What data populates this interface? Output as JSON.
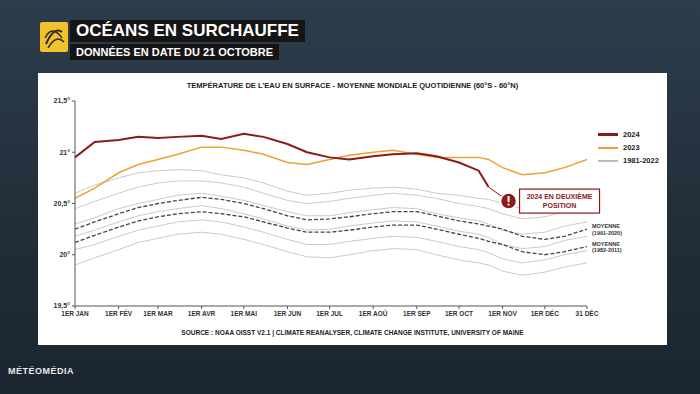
{
  "header": {
    "title": "OCÉANS EN SURCHAUFFE",
    "subtitle": "DONNÉES EN DATE DU 21 OCTOBRE"
  },
  "footer": "MÉTÉOMÉDIA",
  "chart_data": {
    "type": "line",
    "title": "TEMPÉRATURE DE L'EAU EN SURFACE - MOYENNE MONDIALE QUOTIDIENNE (60°S - 60°N)",
    "source": "SOURCE : NOAA OISST V2.1 | CLIMATE REANALYSER, CLIMATE CHANGE INSTITUTE, UNIVERSITY OF MAINE",
    "annotation": "2024 EN DEUXIÈME POSITION",
    "grid": false,
    "legend": "right",
    "x": [
      1,
      15,
      32,
      46,
      60,
      74,
      91,
      105,
      121,
      135,
      152,
      166,
      182,
      196,
      213,
      227,
      244,
      258,
      274,
      288,
      295,
      305,
      319,
      335,
      349,
      365
    ],
    "xlim": [
      1,
      365
    ],
    "xticks": [
      {
        "value": 1,
        "label": "1ER JAN"
      },
      {
        "value": 32,
        "label": "1ER FÉV"
      },
      {
        "value": 60,
        "label": "1ER MAR"
      },
      {
        "value": 91,
        "label": "1ER AVR"
      },
      {
        "value": 121,
        "label": "1ER MAI"
      },
      {
        "value": 152,
        "label": "1ER JUN"
      },
      {
        "value": 182,
        "label": "1ER JUL"
      },
      {
        "value": 213,
        "label": "1ER AOÛ"
      },
      {
        "value": 244,
        "label": "1ER SEP"
      },
      {
        "value": 274,
        "label": "1ER OCT"
      },
      {
        "value": 305,
        "label": "1ER NOV"
      },
      {
        "value": 335,
        "label": "1ER DÉC"
      },
      {
        "value": 365,
        "label": "31 DÉC"
      }
    ],
    "ylim": [
      19.5,
      21.5
    ],
    "yticks": [
      {
        "value": 19.5,
        "label": "19,5°"
      },
      {
        "value": 20,
        "label": "20°"
      },
      {
        "value": 20.5,
        "label": "20,5°"
      },
      {
        "value": 21,
        "label": "21°"
      },
      {
        "value": 21.5,
        "label": "21,5°"
      }
    ],
    "series": [
      {
        "name": "2024",
        "color": "#8b1a1a",
        "values": [
          20.95,
          21.1,
          21.12,
          21.15,
          21.14,
          21.15,
          21.16,
          21.13,
          21.18,
          21.15,
          21.08,
          21.0,
          20.95,
          20.93,
          20.96,
          20.98,
          20.99,
          20.96,
          20.9,
          20.82,
          20.66,
          null,
          null,
          null,
          null,
          null
        ]
      },
      {
        "name": "2023",
        "color": "#f0a030",
        "values": [
          20.55,
          20.65,
          20.8,
          20.88,
          20.93,
          20.98,
          21.05,
          21.05,
          21.02,
          20.98,
          20.9,
          20.88,
          20.93,
          20.97,
          21.0,
          21.02,
          20.98,
          20.95,
          20.95,
          20.95,
          20.93,
          20.85,
          20.78,
          20.8,
          20.85,
          20.93
        ]
      },
      {
        "name": "1981-2022",
        "color": "#bdbdbd",
        "values": [
          [
            20.6,
            20.68,
            20.75,
            20.8,
            20.82,
            20.83,
            20.82,
            20.78,
            20.75,
            20.7,
            20.62,
            20.58,
            20.6,
            20.63,
            20.65,
            20.66,
            20.64,
            20.6,
            20.58,
            20.55,
            20.54,
            20.5,
            20.45,
            20.46,
            20.5,
            20.55
          ],
          [
            20.45,
            20.52,
            20.6,
            20.66,
            20.7,
            20.72,
            20.72,
            20.7,
            20.66,
            20.6,
            20.53,
            20.5,
            20.52,
            20.55,
            20.58,
            20.6,
            20.58,
            20.55,
            20.5,
            20.47,
            20.45,
            20.4,
            20.35,
            20.37,
            20.42,
            20.46
          ],
          [
            20.3,
            20.36,
            20.45,
            20.5,
            20.54,
            20.58,
            20.6,
            20.57,
            20.53,
            20.48,
            20.42,
            20.38,
            20.38,
            20.41,
            20.44,
            20.46,
            20.45,
            20.4,
            20.36,
            20.33,
            20.3,
            20.24,
            20.2,
            20.22,
            20.28,
            20.32
          ],
          [
            20.18,
            20.24,
            20.32,
            20.38,
            20.42,
            20.45,
            20.48,
            20.45,
            20.4,
            20.35,
            20.28,
            20.24,
            20.25,
            20.28,
            20.31,
            20.33,
            20.32,
            20.28,
            20.23,
            20.2,
            20.17,
            20.1,
            20.06,
            20.08,
            20.14,
            20.18
          ],
          [
            20.05,
            20.1,
            20.18,
            20.24,
            20.28,
            20.32,
            20.34,
            20.32,
            20.27,
            20.22,
            20.15,
            20.1,
            20.1,
            20.13,
            20.16,
            20.18,
            20.17,
            20.13,
            20.08,
            20.05,
            20.02,
            19.96,
            19.92,
            19.95,
            20.0,
            20.04
          ],
          [
            19.9,
            19.97,
            20.05,
            20.12,
            20.16,
            20.2,
            20.22,
            20.2,
            20.15,
            20.1,
            20.03,
            19.98,
            19.97,
            20.0,
            20.04,
            20.06,
            20.05,
            20.0,
            19.95,
            19.92,
            19.9,
            19.84,
            19.8,
            19.83,
            19.88,
            19.92
          ]
        ]
      },
      {
        "name": "MOYENNE (1991-2020)",
        "color": "#444444",
        "line_style": "dashed",
        "values": [
          20.25,
          20.32,
          20.4,
          20.46,
          20.5,
          20.53,
          20.56,
          20.54,
          20.5,
          20.45,
          20.38,
          20.34,
          20.35,
          20.37,
          20.4,
          20.42,
          20.42,
          20.38,
          20.33,
          20.3,
          20.28,
          20.25,
          20.18,
          20.15,
          20.18,
          20.25
        ]
      },
      {
        "name": "MOYENNE (1982-2011)",
        "color": "#444444",
        "line_style": "dashed",
        "values": [
          20.12,
          20.19,
          20.27,
          20.33,
          20.37,
          20.4,
          20.42,
          20.4,
          20.37,
          20.32,
          20.26,
          20.22,
          20.22,
          20.24,
          20.27,
          20.29,
          20.29,
          20.25,
          20.2,
          20.16,
          20.13,
          20.1,
          20.03,
          20.0,
          20.03,
          20.08
        ]
      }
    ]
  }
}
